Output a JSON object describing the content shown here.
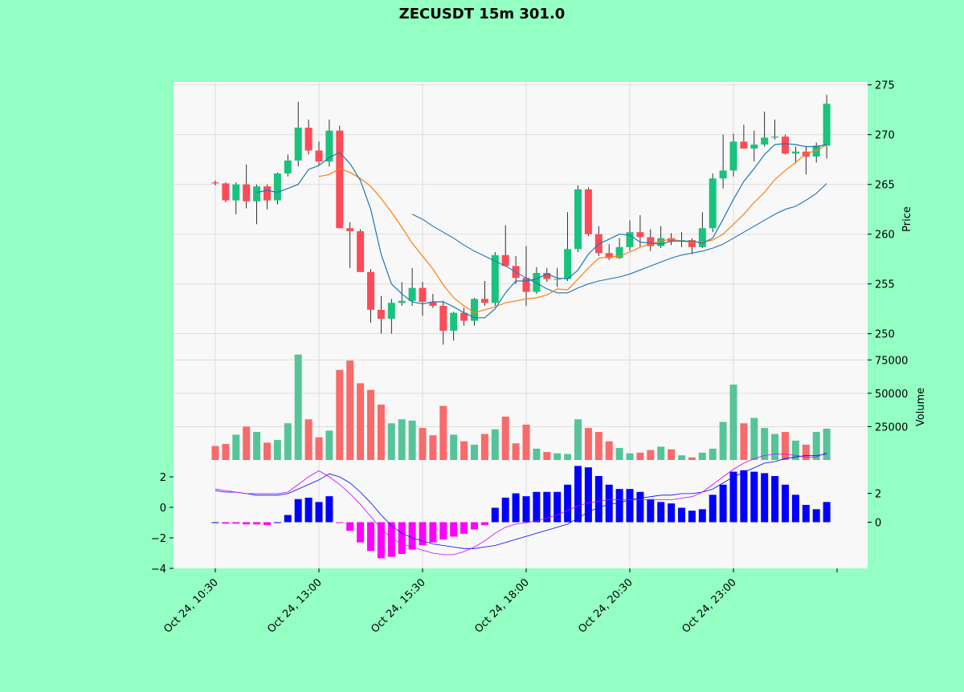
{
  "chart_data": {
    "type": "candlestick",
    "title": "ZECUSDT 15m 301.0",
    "colors": {
      "up": "#19C37D",
      "down": "#FF4A57",
      "vol_up": "#56C499",
      "vol_down": "#F96A6A",
      "ma_short": "#1F77B4",
      "ma_mid": "#FF7F0E",
      "ma_long": "#1F77B4",
      "macd_pos": "#0000FF",
      "macd_neg": "#FF00FF",
      "macd_line": "#0000FF",
      "signal_line": "#CC00FF",
      "background": "#93FFC2",
      "plot_bg": "#F8F8F8",
      "grid": "#DDDDDD"
    },
    "x_tick_labels": [
      "Oct 24, 10:30",
      "Oct 24, 13:00",
      "Oct 24, 15:30",
      "Oct 24, 18:00",
      "Oct 24, 20:30",
      "Oct 24, 23:00"
    ],
    "x_tick_indices": [
      0,
      10,
      20,
      30,
      40,
      50
    ],
    "price_panel": {
      "ylabel": "Price",
      "ylim": [
        248.2,
        275.3
      ],
      "yticks": [
        250,
        255,
        260,
        265,
        270,
        275
      ],
      "ohlc": [
        [
          265.2,
          265.4,
          264.9,
          265.1
        ],
        [
          265.1,
          265.2,
          263.2,
          263.4
        ],
        [
          263.4,
          265.2,
          262.0,
          265.0
        ],
        [
          265.0,
          267.0,
          262.6,
          263.3
        ],
        [
          263.3,
          265.0,
          261.0,
          264.8
        ],
        [
          264.8,
          265.0,
          262.5,
          263.4
        ],
        [
          263.4,
          266.2,
          263.0,
          266.1
        ],
        [
          266.1,
          268.0,
          265.8,
          267.4
        ],
        [
          267.4,
          273.3,
          266.8,
          270.7
        ],
        [
          270.7,
          271.5,
          268.0,
          268.4
        ],
        [
          268.4,
          269.3,
          266.9,
          267.3
        ],
        [
          267.3,
          271.5,
          266.8,
          270.4
        ],
        [
          270.4,
          270.9,
          260.6,
          260.6
        ],
        [
          260.6,
          261.2,
          256.6,
          260.3
        ],
        [
          260.3,
          260.5,
          256.2,
          256.2
        ],
        [
          256.2,
          256.5,
          251.1,
          252.4
        ],
        [
          252.4,
          253.8,
          250.0,
          251.5
        ],
        [
          251.5,
          253.5,
          250.0,
          253.1
        ],
        [
          253.1,
          255.2,
          252.8,
          253.3
        ],
        [
          253.3,
          256.6,
          252.8,
          254.6
        ],
        [
          254.6,
          255.2,
          251.8,
          253.2
        ],
        [
          253.2,
          254.0,
          252.6,
          252.8
        ],
        [
          252.8,
          253.3,
          248.9,
          250.3
        ],
        [
          250.3,
          252.2,
          249.3,
          252.1
        ],
        [
          252.1,
          252.6,
          250.8,
          251.3
        ],
        [
          251.3,
          253.6,
          250.8,
          253.5
        ],
        [
          253.5,
          255.3,
          252.8,
          253.1
        ],
        [
          253.1,
          258.2,
          252.8,
          257.9
        ],
        [
          257.9,
          260.9,
          256.8,
          256.8
        ],
        [
          256.8,
          257.8,
          255.0,
          255.6
        ],
        [
          255.6,
          258.8,
          252.8,
          254.2
        ],
        [
          254.2,
          256.7,
          254.0,
          256.1
        ],
        [
          256.1,
          256.6,
          255.2,
          255.5
        ],
        [
          255.5,
          256.6,
          254.7,
          255.5
        ],
        [
          255.5,
          262.2,
          255.3,
          258.5
        ],
        [
          258.5,
          264.9,
          258.2,
          264.5
        ],
        [
          264.5,
          264.7,
          259.8,
          260.0
        ],
        [
          260.0,
          260.8,
          257.8,
          258.1
        ],
        [
          258.1,
          259.0,
          257.4,
          257.6
        ],
        [
          257.6,
          259.6,
          257.5,
          258.7
        ],
        [
          258.7,
          261.4,
          258.3,
          260.2
        ],
        [
          260.2,
          261.9,
          258.7,
          259.7
        ],
        [
          259.7,
          260.5,
          258.3,
          258.8
        ],
        [
          258.8,
          260.8,
          258.6,
          259.6
        ],
        [
          259.6,
          260.1,
          258.9,
          259.3
        ],
        [
          259.3,
          260.2,
          258.7,
          259.4
        ],
        [
          259.4,
          259.6,
          258.0,
          258.7
        ],
        [
          258.7,
          262.2,
          258.6,
          260.6
        ],
        [
          260.6,
          266.1,
          260.2,
          265.6
        ],
        [
          265.6,
          270.0,
          264.6,
          266.4
        ],
        [
          266.4,
          270.1,
          265.8,
          269.3
        ],
        [
          269.3,
          271.0,
          268.6,
          268.6
        ],
        [
          268.6,
          270.4,
          267.3,
          269.0
        ],
        [
          269.0,
          272.3,
          268.8,
          269.7
        ],
        [
          269.7,
          271.5,
          269.5,
          269.8
        ],
        [
          269.8,
          270.0,
          268.0,
          268.1
        ],
        [
          268.1,
          268.8,
          267.1,
          268.3
        ],
        [
          268.3,
          268.8,
          266.0,
          267.8
        ],
        [
          267.8,
          269.2,
          267.2,
          268.9
        ],
        [
          268.9,
          274.0,
          267.6,
          273.1
        ]
      ],
      "ma_short": [
        null,
        null,
        null,
        null,
        264.2,
        264.4,
        264.2,
        264.6,
        265.0,
        266.5,
        266.9,
        267.7,
        268.2,
        267.1,
        265.4,
        262.5,
        258.0,
        255.0,
        254.0,
        253.2,
        253.0,
        253.2,
        253.2,
        252.7,
        252.1,
        251.6,
        251.6,
        252.5,
        254.1,
        255.3,
        255.3,
        255.5,
        256.0,
        255.6,
        255.5,
        256.4,
        258.0,
        259.0,
        259.5,
        260.0,
        259.9,
        259.2,
        259.1,
        259.0,
        259.3,
        259.3,
        259.3,
        259.1,
        259.6,
        261.5,
        263.5,
        265.3,
        266.6,
        268.0,
        269.0,
        269.1,
        269.0,
        268.8,
        268.8,
        269.0
      ],
      "ma_mid": [
        null,
        null,
        null,
        null,
        null,
        null,
        null,
        null,
        null,
        null,
        265.8,
        266.0,
        266.6,
        266.2,
        265.6,
        264.8,
        263.6,
        262.2,
        260.7,
        259.1,
        257.8,
        256.5,
        254.9,
        253.6,
        252.8,
        252.1,
        252.4,
        252.7,
        253.1,
        253.3,
        253.5,
        253.6,
        253.9,
        254.5,
        254.4,
        255.5,
        256.6,
        257.6,
        257.7,
        257.8,
        258.2,
        258.7,
        259.0,
        259.3,
        259.5,
        259.3,
        259.2,
        259.2,
        259.4,
        260.0,
        261.0,
        262.0,
        263.2,
        264.2,
        265.5,
        266.4,
        267.2,
        268.1,
        268.4,
        269.0
      ],
      "ma_long": [
        null,
        null,
        null,
        null,
        null,
        null,
        null,
        null,
        null,
        null,
        null,
        null,
        null,
        null,
        null,
        null,
        null,
        null,
        null,
        262.0,
        261.5,
        260.8,
        260.2,
        259.6,
        258.9,
        258.3,
        257.8,
        257.3,
        256.8,
        256.2,
        255.6,
        255.1,
        254.5,
        254.1,
        254.1,
        254.6,
        255.0,
        255.3,
        255.5,
        255.7,
        256.0,
        256.4,
        256.8,
        257.2,
        257.6,
        257.9,
        258.1,
        258.3,
        258.6,
        259.0,
        259.6,
        260.2,
        260.8,
        261.4,
        262.0,
        262.5,
        262.8,
        263.4,
        264.1,
        265.1
      ]
    },
    "volume_panel": {
      "ylabel": "Volume",
      "ylim": [
        0,
        80000
      ],
      "yticks": [
        25000,
        50000,
        75000
      ],
      "values": [
        10500,
        12000,
        19000,
        25000,
        21000,
        13000,
        15000,
        27500,
        79000,
        30500,
        17000,
        22000,
        67500,
        74500,
        57500,
        52500,
        41500,
        27500,
        30500,
        29500,
        24000,
        18500,
        40500,
        19000,
        14000,
        11500,
        19500,
        23000,
        32500,
        12500,
        26500,
        8500,
        6000,
        5000,
        4500,
        30500,
        24000,
        21000,
        14000,
        9000,
        5000,
        5500,
        7500,
        10000,
        8000,
        3500,
        2000,
        5500,
        8500,
        28500,
        56500,
        27500,
        31500,
        24000,
        19500,
        21000,
        14500,
        11500,
        21000,
        23500
      ]
    },
    "macd_panel": {
      "ylim_left": [
        -4,
        3
      ],
      "yticks_left": [
        2,
        0,
        -2,
        -4
      ],
      "ylim_right": [
        -3.2,
        4.2
      ],
      "yticks_right": [
        2,
        0
      ],
      "hist": [
        0.0,
        -0.1,
        -0.1,
        -0.15,
        -0.15,
        -0.2,
        0.0,
        0.5,
        1.6,
        1.7,
        1.4,
        1.8,
        -0.05,
        -0.6,
        -1.4,
        -2.0,
        -2.5,
        -2.4,
        -2.2,
        -1.9,
        -1.6,
        -1.4,
        -1.2,
        -1.0,
        -0.8,
        -0.5,
        -0.2,
        1.0,
        1.7,
        2.0,
        1.8,
        2.1,
        2.1,
        2.1,
        2.6,
        3.9,
        3.8,
        3.2,
        2.6,
        2.3,
        2.3,
        2.1,
        1.6,
        1.4,
        1.3,
        1.0,
        0.8,
        0.9,
        1.9,
        2.6,
        3.5,
        3.6,
        3.5,
        3.4,
        3.2,
        2.6,
        1.9,
        1.2,
        0.9,
        1.4
      ],
      "macd": [
        1.1,
        1.0,
        1.0,
        0.9,
        0.8,
        0.8,
        0.8,
        0.9,
        1.2,
        1.5,
        1.8,
        2.2,
        2.0,
        1.6,
        1.0,
        0.3,
        -0.5,
        -1.2,
        -1.7,
        -2.0,
        -2.2,
        -2.4,
        -2.5,
        -2.6,
        -2.7,
        -2.7,
        -2.6,
        -2.5,
        -2.3,
        -2.1,
        -1.9,
        -1.7,
        -1.5,
        -1.3,
        -1.1,
        -0.7,
        -0.3,
        0.0,
        0.2,
        0.3,
        0.5,
        0.6,
        0.7,
        0.8,
        0.8,
        0.9,
        0.9,
        1.0,
        1.2,
        1.6,
        2.0,
        2.3,
        2.6,
        2.9,
        3.0,
        3.2,
        3.3,
        3.4,
        3.4,
        3.5
      ],
      "signal": [
        1.2,
        1.1,
        1.0,
        0.9,
        0.9,
        0.9,
        0.9,
        1.0,
        1.5,
        2.0,
        2.4,
        2.0,
        1.5,
        0.9,
        0.2,
        -0.6,
        -1.4,
        -2.0,
        -2.4,
        -2.6,
        -2.8,
        -3.0,
        -3.1,
        -3.1,
        -2.9,
        -2.6,
        -2.2,
        -1.7,
        -1.3,
        -1.1,
        -1.0,
        -0.9,
        -0.7,
        -0.5,
        -0.2,
        0.1,
        0.3,
        0.4,
        0.5,
        0.5,
        0.5,
        0.5,
        0.5,
        0.5,
        0.5,
        0.6,
        0.7,
        1.0,
        1.5,
        2.0,
        2.5,
        2.9,
        3.2,
        3.4,
        3.5,
        3.5,
        3.4,
        3.3,
        3.3,
        3.6
      ]
    }
  }
}
